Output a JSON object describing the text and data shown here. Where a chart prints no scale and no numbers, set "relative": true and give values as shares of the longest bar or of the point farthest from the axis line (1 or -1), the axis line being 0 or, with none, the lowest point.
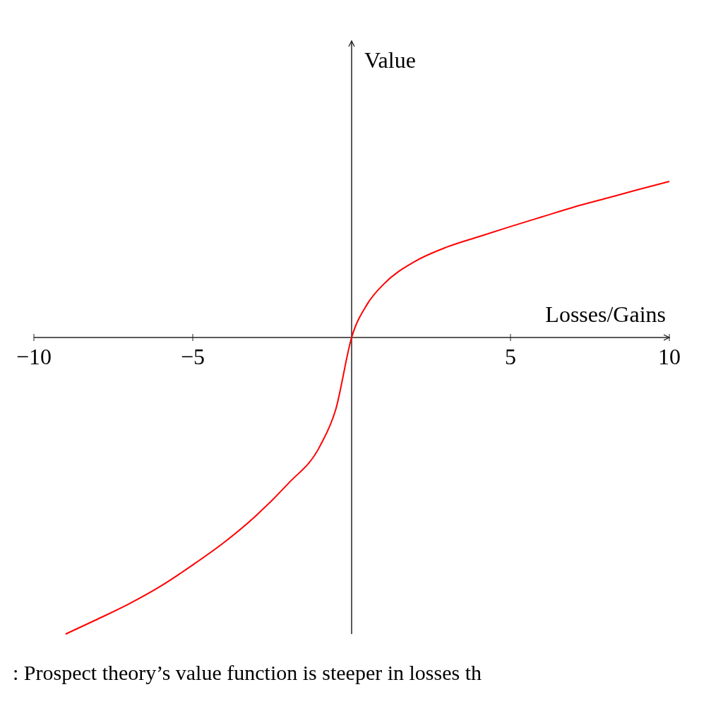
{
  "chart_data": {
    "type": "line",
    "xlabel": "Losses/Gains",
    "ylabel": "Value",
    "relative": true,
    "x": [
      -9,
      -8,
      -7,
      -6,
      -5,
      -4,
      -3,
      -2,
      -1,
      -0.5,
      0,
      0.5,
      1,
      2,
      3,
      4,
      5,
      6,
      7,
      8,
      9,
      10
    ],
    "series": [
      {
        "color": "#ff0000",
        "values": [
          -1,
          -0.95,
          -0.898,
          -0.838,
          -0.767,
          -0.69,
          -0.6,
          -0.493,
          -0.367,
          -0.243,
          0,
          0.114,
          0.179,
          0.257,
          0.305,
          0.34,
          0.374,
          0.407,
          0.44,
          0.469,
          0.498,
          0.526
        ]
      }
    ],
    "xlim": [
      -10,
      10
    ],
    "xticks": [
      {
        "value": -10,
        "label": "−10"
      },
      {
        "value": -5,
        "label": "−5"
      },
      5,
      10
    ],
    "grid": false,
    "marker": "none",
    "line_style": "solid",
    "annotations": [
      ": Prospect theory’s value function is steeper in losses th"
    ]
  }
}
